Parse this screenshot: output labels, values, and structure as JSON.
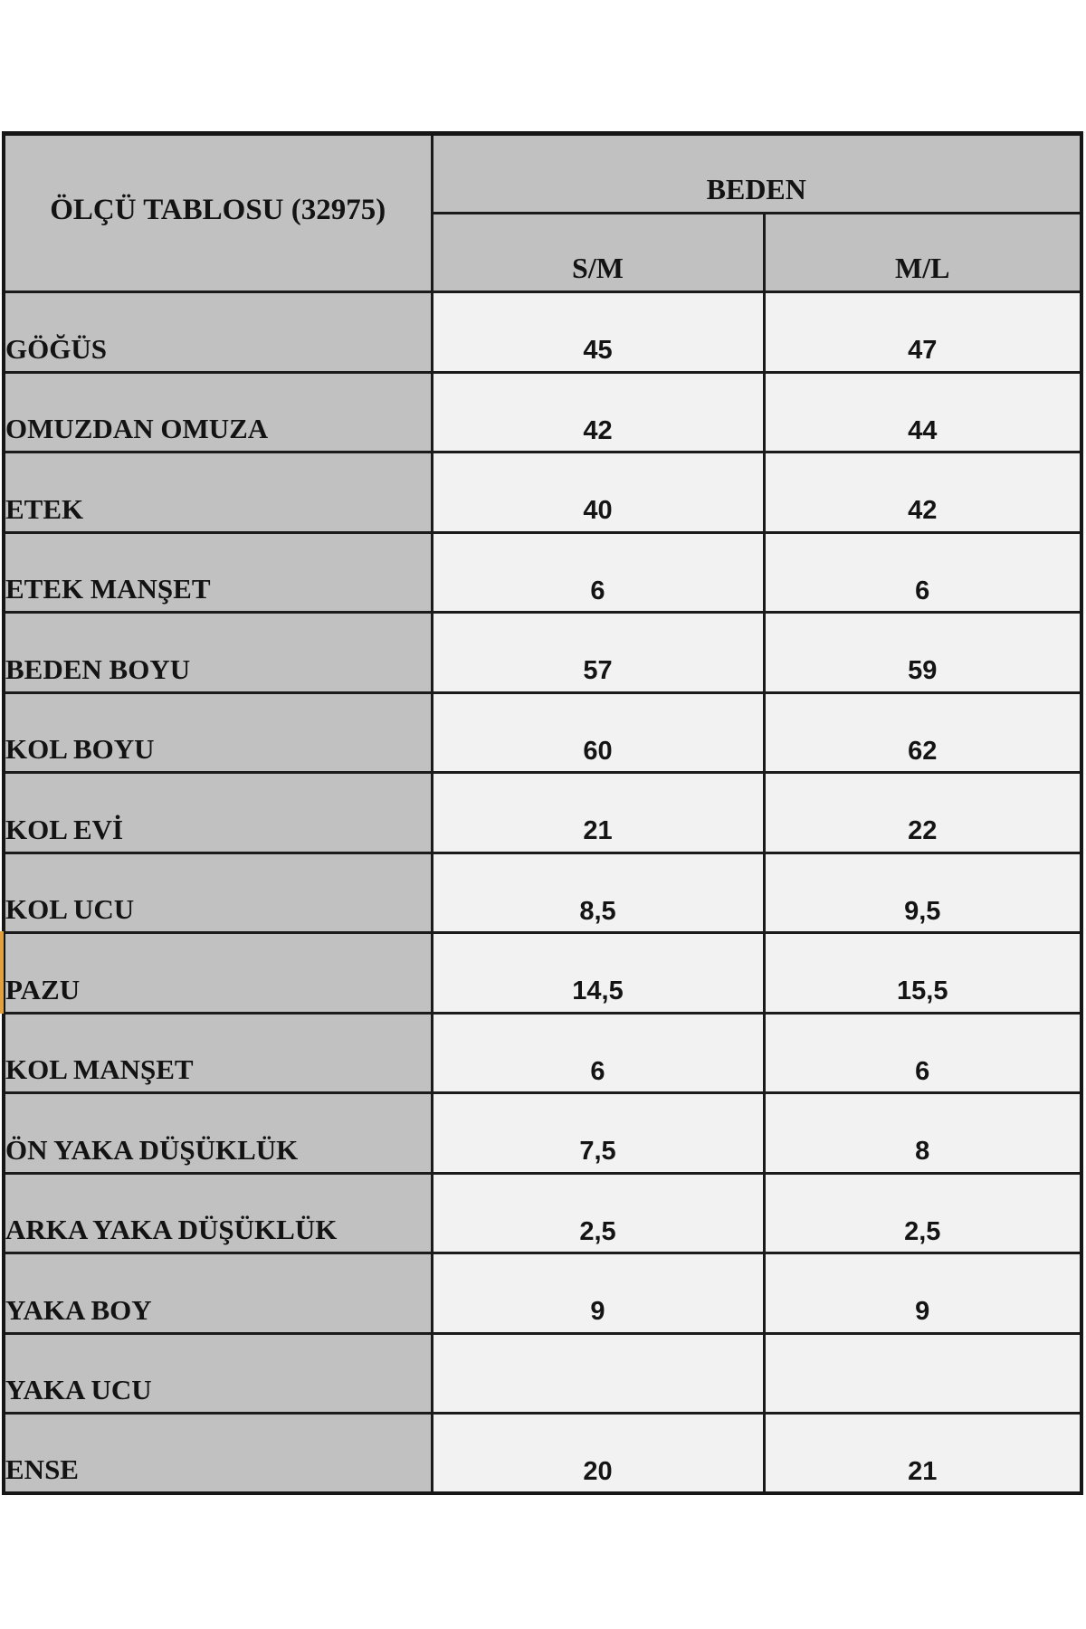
{
  "title": "ÖLÇÜ TABLOSU (32975)",
  "columns": {
    "group_label": "BEDEN",
    "sizes": [
      "S/M",
      "M/L"
    ]
  },
  "rows": [
    {
      "label": "GÖĞÜS",
      "sm": "45",
      "ml": "47"
    },
    {
      "label": "OMUZDAN OMUZA",
      "sm": "42",
      "ml": "44"
    },
    {
      "label": "ETEK",
      "sm": "40",
      "ml": "42"
    },
    {
      "label": "ETEK MANŞET",
      "sm": "6",
      "ml": "6"
    },
    {
      "label": "BEDEN BOYU",
      "sm": "57",
      "ml": "59"
    },
    {
      "label": "KOL BOYU",
      "sm": "60",
      "ml": "62"
    },
    {
      "label": "KOL EVİ",
      "sm": "21",
      "ml": "22"
    },
    {
      "label": "KOL UCU",
      "sm": "8,5",
      "ml": "9,5"
    },
    {
      "label": "PAZU",
      "sm": "14,5",
      "ml": "15,5"
    },
    {
      "label": "KOL MANŞET",
      "sm": "6",
      "ml": "6"
    },
    {
      "label": "ÖN YAKA DÜŞÜKLÜK",
      "sm": "7,5",
      "ml": "8"
    },
    {
      "label": "ARKA YAKA DÜŞÜKLÜK",
      "sm": "2,5",
      "ml": "2,5"
    },
    {
      "label": "YAKA BOY",
      "sm": "9",
      "ml": "9"
    },
    {
      "label": "YAKA UCU",
      "sm": "",
      "ml": ""
    },
    {
      "label": "ENSE",
      "sm": "20",
      "ml": "21"
    }
  ],
  "colors": {
    "header_bg": "#c1c1c1",
    "cell_bg": "#f2f2f2",
    "border": "#1b1b1b",
    "accent": "#e2a13c",
    "text": "#131313"
  }
}
